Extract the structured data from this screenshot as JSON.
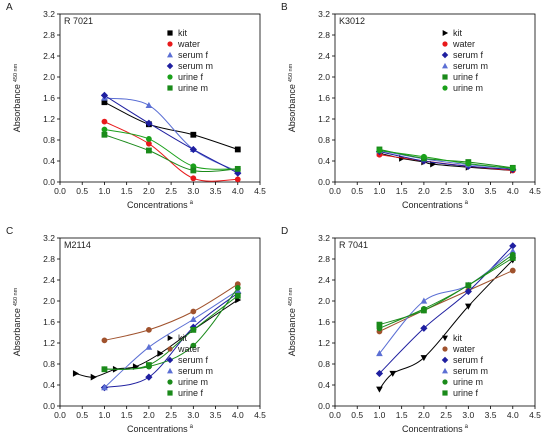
{
  "chart_data": [
    {
      "type": "scatter",
      "panel_letter": "A",
      "title": "R 7021",
      "xlabel": "Concentrations",
      "xlabel_superscript": "a",
      "ylabel": "Absorbance",
      "ylabel_subscript": "450 nm",
      "xlim": [
        0,
        4.5
      ],
      "ylim": [
        0,
        3.2
      ],
      "xticks": [
        "0.0",
        "0.5",
        "1.0",
        "1.5",
        "2.0",
        "2.5",
        "3.0",
        "3.5",
        "4.0",
        "4.5"
      ],
      "yticks": [
        "0.0",
        "0.4",
        "0.8",
        "1.2",
        "1.6",
        "2.0",
        "2.4",
        "2.8",
        "3.2"
      ],
      "legend_position": "top-right",
      "series": [
        {
          "name": "kit",
          "color": "#000000",
          "marker": "square",
          "x": [
            1,
            2,
            3,
            4
          ],
          "y": [
            1.52,
            1.1,
            0.9,
            0.62
          ]
        },
        {
          "name": "water",
          "color": "#e8191b",
          "marker": "circle",
          "x": [
            1,
            2,
            3,
            4
          ],
          "y": [
            1.15,
            0.73,
            0.07,
            0.05
          ]
        },
        {
          "name": "serum f",
          "color": "#5b6fd4",
          "marker": "triangle-up",
          "x": [
            1,
            2,
            3,
            4
          ],
          "y": [
            1.6,
            1.46,
            0.62,
            0.2
          ]
        },
        {
          "name": "serum m",
          "color": "#1f1fa0",
          "marker": "diamond",
          "x": [
            1,
            2,
            3,
            4
          ],
          "y": [
            1.65,
            1.12,
            0.62,
            0.17
          ]
        },
        {
          "name": "urine f",
          "color": "#1aa01a",
          "marker": "circle",
          "x": [
            1,
            2,
            3,
            4
          ],
          "y": [
            1.0,
            0.82,
            0.3,
            0.25
          ]
        },
        {
          "name": "urine m",
          "color": "#1a8a1a",
          "marker": "square",
          "x": [
            1,
            2,
            3,
            4
          ],
          "y": [
            0.9,
            0.6,
            0.22,
            0.25
          ]
        }
      ]
    },
    {
      "type": "scatter",
      "panel_letter": "B",
      "title": "K3012",
      "xlabel": "Concentrations",
      "xlabel_superscript": "a",
      "ylabel": "Absorbance",
      "ylabel_subscript": "450 nm",
      "xlim": [
        0,
        4.5
      ],
      "ylim": [
        0,
        3.2
      ],
      "xticks": [
        "0.0",
        "0.5",
        "1.0",
        "1.5",
        "2.0",
        "2.5",
        "3.0",
        "3.5",
        "4.0",
        "4.5"
      ],
      "yticks": [
        "0.0",
        "0.4",
        "0.8",
        "1.2",
        "1.6",
        "2.0",
        "2.4",
        "2.8",
        "3.2"
      ],
      "legend_position": "top-right",
      "series": [
        {
          "name": "kit",
          "color": "#000000",
          "marker": "triangle-right",
          "x": [
            1,
            1.5,
            2,
            2.2,
            3,
            4
          ],
          "y": [
            0.55,
            0.45,
            0.38,
            0.34,
            0.28,
            0.22
          ]
        },
        {
          "name": "water",
          "color": "#e8191b",
          "marker": "circle",
          "x": [
            1,
            2,
            3,
            4
          ],
          "y": [
            0.52,
            0.4,
            0.3,
            0.22
          ]
        },
        {
          "name": "serum f",
          "color": "#1f1fa0",
          "marker": "diamond",
          "x": [
            1,
            2,
            3,
            4
          ],
          "y": [
            0.58,
            0.4,
            0.3,
            0.24
          ]
        },
        {
          "name": "serum m",
          "color": "#5b6fd4",
          "marker": "triangle-up",
          "x": [
            1,
            2,
            3,
            4
          ],
          "y": [
            0.6,
            0.44,
            0.33,
            0.26
          ]
        },
        {
          "name": "urine f",
          "color": "#1a8a1a",
          "marker": "square",
          "x": [
            1,
            2,
            3,
            4
          ],
          "y": [
            0.62,
            0.45,
            0.38,
            0.27
          ]
        },
        {
          "name": "urine m",
          "color": "#1aa01a",
          "marker": "circle",
          "x": [
            1,
            2,
            3,
            4
          ],
          "y": [
            0.6,
            0.48,
            0.35,
            0.26
          ]
        }
      ]
    },
    {
      "type": "scatter",
      "panel_letter": "C",
      "title": "M2114",
      "xlabel": "Concentrations",
      "xlabel_superscript": "a",
      "ylabel": "Absorbance",
      "ylabel_subscript": "450 nm",
      "xlim": [
        0,
        4.5
      ],
      "ylim": [
        0,
        3.2
      ],
      "xticks": [
        "0.0",
        "0.5",
        "1.0",
        "1.5",
        "2.0",
        "2.5",
        "3.0",
        "3.5",
        "4.0",
        "4.5"
      ],
      "yticks": [
        "0.0",
        "0.4",
        "0.8",
        "1.2",
        "1.6",
        "2.0",
        "2.4",
        "2.8",
        "3.2"
      ],
      "legend_position": "bottom-right",
      "series": [
        {
          "name": "kit",
          "color": "#000000",
          "marker": "triangle-right",
          "x": [
            0.35,
            0.75,
            1.25,
            1.7,
            2.25,
            3.0,
            4.0
          ],
          "y": [
            0.62,
            0.55,
            0.7,
            0.75,
            1.0,
            1.45,
            2.02
          ]
        },
        {
          "name": "water",
          "color": "#a0522d",
          "marker": "circle",
          "x": [
            1,
            2,
            3,
            4
          ],
          "y": [
            1.25,
            1.45,
            1.8,
            2.32
          ]
        },
        {
          "name": "serum f",
          "color": "#1f1fa0",
          "marker": "diamond",
          "x": [
            1,
            2,
            3,
            4
          ],
          "y": [
            0.35,
            0.55,
            1.5,
            2.15
          ]
        },
        {
          "name": "serum m",
          "color": "#5b6fd4",
          "marker": "triangle-up",
          "x": [
            1,
            2,
            3,
            4
          ],
          "y": [
            0.35,
            1.12,
            1.65,
            2.2
          ]
        },
        {
          "name": "urine m",
          "color": "#1a8a1a",
          "marker": "circle",
          "x": [
            1,
            2,
            3,
            4
          ],
          "y": [
            0.7,
            0.75,
            1.15,
            2.25
          ]
        },
        {
          "name": "urine f",
          "color": "#1a8a1a",
          "marker": "square",
          "x": [
            1,
            2,
            3,
            4
          ],
          "y": [
            0.7,
            0.78,
            1.45,
            2.1
          ]
        }
      ]
    },
    {
      "type": "scatter",
      "panel_letter": "D",
      "title": "R 7041",
      "xlabel": "Concentrations",
      "xlabel_superscript": "a",
      "ylabel": "Absorbance",
      "ylabel_subscript": "450 nm",
      "xlim": [
        0,
        4.5
      ],
      "ylim": [
        0,
        3.2
      ],
      "xticks": [
        "0.0",
        "0.5",
        "1.0",
        "1.5",
        "2.0",
        "2.5",
        "3.0",
        "3.5",
        "4.0",
        "4.5"
      ],
      "yticks": [
        "0.0",
        "0.4",
        "0.8",
        "1.2",
        "1.6",
        "2.0",
        "2.4",
        "2.8",
        "3.2"
      ],
      "legend_position": "bottom-right",
      "series": [
        {
          "name": "kit",
          "color": "#000000",
          "marker": "triangle-down",
          "x": [
            1,
            1.3,
            2,
            3,
            4
          ],
          "y": [
            0.32,
            0.62,
            0.92,
            1.9,
            2.78
          ]
        },
        {
          "name": "water",
          "color": "#a0522d",
          "marker": "circle",
          "x": [
            1,
            2,
            3,
            4
          ],
          "y": [
            1.42,
            1.82,
            2.2,
            2.58
          ]
        },
        {
          "name": "serum f",
          "color": "#1f1fa0",
          "marker": "diamond",
          "x": [
            1,
            2,
            3,
            4
          ],
          "y": [
            0.62,
            1.48,
            2.18,
            3.05
          ]
        },
        {
          "name": "serum m",
          "color": "#5b6fd4",
          "marker": "triangle-up",
          "x": [
            1,
            2,
            3,
            4
          ],
          "y": [
            1.0,
            2.0,
            2.3,
            2.95
          ]
        },
        {
          "name": "urine m",
          "color": "#1a8a1a",
          "marker": "circle",
          "x": [
            1,
            2,
            3,
            4
          ],
          "y": [
            1.48,
            1.85,
            2.3,
            2.88
          ]
        },
        {
          "name": "urine f",
          "color": "#1a8a1a",
          "marker": "square",
          "x": [
            1,
            2,
            3,
            4
          ],
          "y": [
            1.55,
            1.82,
            2.3,
            2.82
          ]
        }
      ]
    }
  ]
}
